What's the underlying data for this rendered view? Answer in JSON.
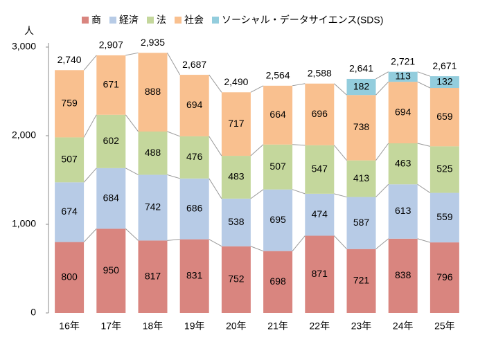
{
  "chart_data": {
    "type": "stacked-bar",
    "y_unit": "人",
    "categories": [
      "16年",
      "17年",
      "18年",
      "19年",
      "20年",
      "21年",
      "22年",
      "23年",
      "24年",
      "25年"
    ],
    "series": [
      {
        "name": "商",
        "color": "#d9857f",
        "values": [
          800,
          950,
          817,
          831,
          752,
          698,
          871,
          721,
          838,
          796
        ]
      },
      {
        "name": "経済",
        "color": "#b7cbe6",
        "values": [
          674,
          684,
          742,
          686,
          538,
          695,
          474,
          587,
          613,
          559
        ]
      },
      {
        "name": "法",
        "color": "#c4d79c",
        "values": [
          507,
          602,
          488,
          476,
          483,
          507,
          547,
          413,
          463,
          525
        ]
      },
      {
        "name": "社会",
        "color": "#f9c08f",
        "values": [
          759,
          671,
          888,
          694,
          717,
          664,
          696,
          738,
          694,
          659
        ]
      },
      {
        "name": "ソーシャル・データサイエンス(SDS)",
        "color": "#93cddd",
        "values": [
          null,
          null,
          null,
          null,
          null,
          null,
          null,
          182,
          113,
          132
        ]
      }
    ],
    "totals": [
      2740,
      2907,
      2935,
      2687,
      2490,
      2564,
      2588,
      2641,
      2721,
      2671
    ],
    "total_labels": [
      "2,740",
      "2,907",
      "2,935",
      "2,687",
      "2,490",
      "2,564",
      "2,588",
      "2,641",
      "2,721",
      "2,671"
    ],
    "ylim": [
      0,
      3000
    ],
    "yticks": [
      0,
      {
        "value": 1000,
        "label": "1,000"
      },
      {
        "value": 2000,
        "label": "2,000"
      },
      {
        "value": 3000,
        "label": "3,000"
      }
    ],
    "grid": false
  }
}
